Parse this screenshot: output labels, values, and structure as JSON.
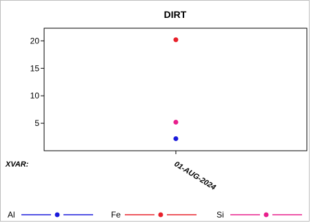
{
  "chart_data": {
    "type": "scatter",
    "title": "DIRT",
    "xlabel": "XVAR:",
    "ylabel": "",
    "categories": [
      "01-AUG-2024"
    ],
    "ylim": [
      0,
      22.3
    ],
    "yticks": [
      5,
      10,
      15,
      20
    ],
    "grid": false,
    "legend_position": "bottom",
    "series": [
      {
        "name": "Al",
        "color": "#1a1adb",
        "values": [
          2.2
        ]
      },
      {
        "name": "Fe",
        "color": "#e8202a",
        "values": [
          20.2
        ]
      },
      {
        "name": "Si",
        "color": "#e81e8c",
        "values": [
          5.2
        ]
      }
    ]
  }
}
